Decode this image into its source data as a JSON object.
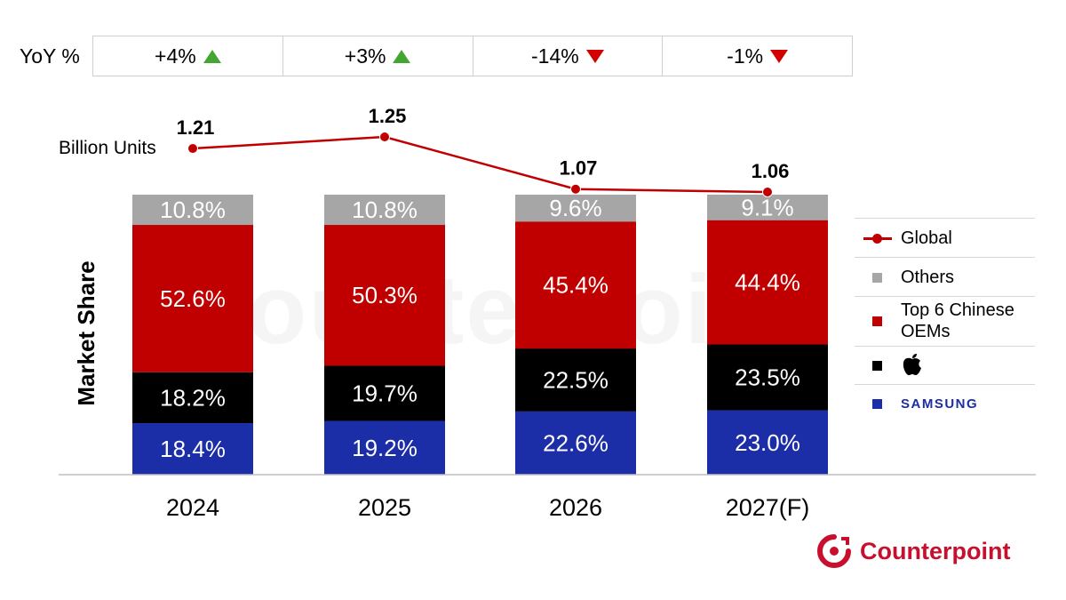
{
  "yoy": {
    "label": "YoY %",
    "values": [
      {
        "text": "+4%",
        "direction": "up"
      },
      {
        "text": "+3%",
        "direction": "up"
      },
      {
        "text": "-14%",
        "direction": "down"
      },
      {
        "text": "-1%",
        "direction": "down"
      }
    ]
  },
  "chart_data": {
    "type": "bar",
    "stacked": true,
    "categories": [
      "2024",
      "2025",
      "2026",
      "2027(F)"
    ],
    "ylabel": "Market Share",
    "series": [
      {
        "name": "SAMSUNG",
        "color": "#1c2da8",
        "values": [
          18.4,
          19.2,
          22.6,
          23.0
        ],
        "labels": [
          "18.4%",
          "19.2%",
          "22.6%",
          "23.0%"
        ]
      },
      {
        "name": "Apple",
        "color": "#000000",
        "values": [
          18.2,
          19.7,
          22.5,
          23.5
        ],
        "labels": [
          "18.2%",
          "19.7%",
          "22.5%",
          "23.5%"
        ]
      },
      {
        "name": "Top 6 Chinese OEMs",
        "color": "#c00000",
        "values": [
          52.6,
          50.3,
          45.4,
          44.4
        ],
        "labels": [
          "52.6%",
          "50.3%",
          "45.4%",
          "44.4%"
        ]
      },
      {
        "name": "Others",
        "color": "#a6a6a6",
        "values": [
          10.8,
          10.8,
          9.6,
          9.1
        ],
        "labels": [
          "10.8%",
          "10.8%",
          "9.6%",
          "9.1%"
        ]
      }
    ],
    "line": {
      "name": "Global",
      "unit_label": "Billion Units",
      "color": "#c00000",
      "values": [
        1.21,
        1.25,
        1.07,
        1.06
      ],
      "labels": [
        "1.21",
        "1.25",
        "1.07",
        "1.06"
      ]
    }
  },
  "legend": {
    "global": "Global",
    "others": "Others",
    "chinese_line1": "Top 6 Chinese",
    "chinese_line2": "OEMs",
    "apple_icon": "apple-logo-icon",
    "samsung": "SAMSUNG"
  },
  "brand": {
    "name": "Counterpoint",
    "watermark": "counterpoint",
    "color": "#c8102e"
  }
}
